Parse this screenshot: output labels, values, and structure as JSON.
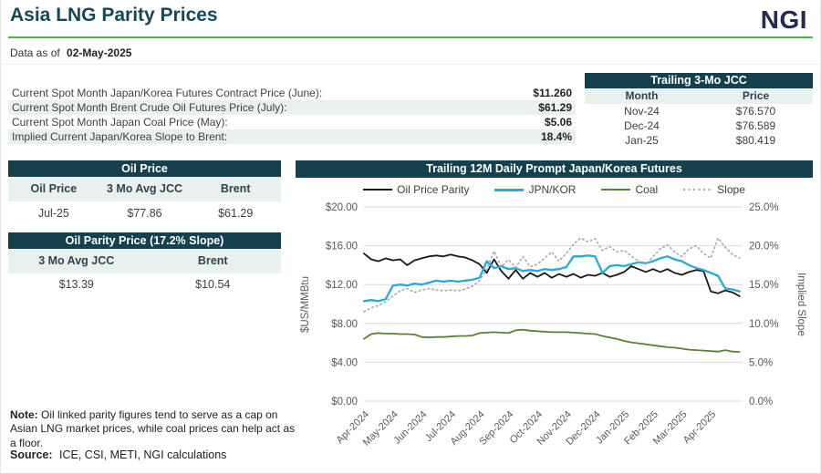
{
  "header": {
    "title": "Asia LNG Parity Prices",
    "logo": "NGI",
    "data_as_of_label": "Data as of",
    "data_as_of_date": "02-May-2025"
  },
  "spot_table": {
    "rows": [
      {
        "label": "Current Spot Month Japan/Korea Futures Contract Price (June):",
        "value": "$11.260"
      },
      {
        "label": "Current Spot Month Brent Crude Oil Futures Price (July):",
        "value": "$61.29"
      },
      {
        "label": "Current Spot Month Japan Coal Price (May):",
        "value": "$5.06"
      },
      {
        "label": "Implied Current Japan/Korea Slope to Brent:",
        "value": "18.4%"
      }
    ]
  },
  "jcc_table": {
    "title": "Trailing 3-Mo JCC",
    "columns": [
      "Month",
      "Price"
    ],
    "rows": [
      [
        "Nov-24",
        "$76.570"
      ],
      [
        "Dec-24",
        "$76.589"
      ],
      [
        "Jan-25",
        "$80.419"
      ]
    ]
  },
  "oil_price_table": {
    "title": "Oil Price",
    "columns": [
      "Oil Price",
      "3 Mo Avg JCC",
      "Brent"
    ],
    "rows": [
      [
        "Jul-25",
        "$77.86",
        "$61.29"
      ]
    ]
  },
  "oil_parity_table": {
    "title": "Oil Parity Price (17.2% Slope)",
    "columns": [
      "3 Mo Avg JCC",
      "Brent"
    ],
    "rows": [
      [
        "$13.39",
        "$10.54"
      ]
    ]
  },
  "note": {
    "label": "Note:",
    "text": " Oil linked parity figures tend to serve as a cap on Asian LNG market prices, while coal prices can help act as a floor."
  },
  "source": {
    "label": "Source:",
    "text": " ICE, CSI, METI, NGI calculations"
  },
  "colors": {
    "header_bar": "#15414e",
    "title_text": "#16485c",
    "logo_navy": "#252b4b",
    "accent_green_rule": "#4cb454",
    "row_stripe": "#e9f1ee",
    "grid_line": "#d9d9d9",
    "series_parity": "#1a1a1a",
    "series_jpnkor": "#29a8df",
    "series_coal": "#5c8038",
    "series_slope": "#a6a6a6"
  },
  "chart_data": {
    "type": "line",
    "title": "Trailing 12M Daily Prompt Japan/Korea Futures",
    "ylabel_left": "$US/MMBtu",
    "ylabel_right": "Implied Slope",
    "ylim_left": [
      0,
      20
    ],
    "ylim_right": [
      0,
      25
    ],
    "yticks_left": [
      "$0.00",
      "$4.00",
      "$8.00",
      "$12.00",
      "$16.00",
      "$20.00"
    ],
    "yticks_right": [
      "0.0%",
      "5.0%",
      "10.0%",
      "15.0%",
      "20.0%",
      "25.0%"
    ],
    "grid": "horizontal",
    "legend_position": "top",
    "x_unit": "months since Apr-2024",
    "xlim": [
      0,
      13.1
    ],
    "xtick_labels": [
      "Apr-2024",
      "May-2024",
      "Jun-2024",
      "Jul-2024",
      "Aug-2024",
      "Sep-2024",
      "Oct-2024",
      "Nov-2024",
      "Dec-2024",
      "Jan-2025",
      "Feb-2025",
      "Mar-2025",
      "Apr-2025"
    ],
    "xtick_positions": [
      0,
      1,
      2,
      3,
      4,
      5,
      6,
      7,
      8,
      9,
      10,
      11,
      12
    ],
    "series": [
      {
        "name": "Oil Price Parity",
        "axis": "left",
        "color": "#1a1a1a",
        "style": "solid",
        "x_start": 0,
        "x_step": 0.25,
        "values": [
          15.2,
          14.6,
          14.4,
          14.7,
          14.5,
          14.6,
          14.0,
          14.5,
          14.7,
          14.9,
          15.0,
          14.9,
          15.1,
          14.9,
          14.8,
          14.5,
          14.1,
          13.2,
          14.6,
          13.4,
          12.6,
          13.5,
          12.6,
          13.2,
          12.8,
          13.2,
          12.7,
          13.1,
          12.8,
          13.1,
          12.7,
          13.0,
          12.9,
          13.2,
          12.8,
          13.0,
          13.3,
          13.9,
          13.6,
          13.3,
          13.6,
          13.3,
          13.6,
          13.2,
          13.0,
          13.3,
          13.5,
          13.4,
          11.3,
          11.1,
          11.4,
          11.2,
          10.8
        ]
      },
      {
        "name": "JPN/KOR",
        "axis": "left",
        "color": "#29a8df",
        "style": "solid",
        "x_start": 0,
        "x_step": 0.25,
        "values": [
          10.3,
          10.4,
          10.3,
          10.5,
          11.9,
          12.0,
          11.9,
          12.1,
          12.0,
          12.2,
          12.4,
          12.3,
          12.4,
          12.3,
          12.4,
          12.5,
          12.7,
          14.4,
          13.7,
          13.9,
          13.6,
          13.7,
          13.4,
          13.5,
          13.4,
          13.6,
          13.5,
          13.6,
          13.8,
          14.9,
          14.9,
          15.0,
          14.9,
          13.2,
          13.9,
          14.0,
          13.9,
          14.1,
          14.3,
          14.2,
          14.4,
          14.7,
          14.9,
          14.6,
          14.4,
          14.0,
          13.7,
          13.5,
          13.2,
          12.9,
          11.6,
          11.5,
          11.3
        ]
      },
      {
        "name": "Coal",
        "axis": "left",
        "color": "#5c8038",
        "style": "solid",
        "x_start": 0,
        "x_step": 0.25,
        "values": [
          6.4,
          6.9,
          7.0,
          6.95,
          6.95,
          6.9,
          6.9,
          6.85,
          6.6,
          6.55,
          6.6,
          6.6,
          6.65,
          6.7,
          6.7,
          6.75,
          7.0,
          7.05,
          7.1,
          7.05,
          7.0,
          7.3,
          7.35,
          7.25,
          7.2,
          7.15,
          7.1,
          7.1,
          7.1,
          7.05,
          7.0,
          6.95,
          6.9,
          6.7,
          6.55,
          6.4,
          6.2,
          6.05,
          5.95,
          5.85,
          5.75,
          5.65,
          5.55,
          5.5,
          5.4,
          5.3,
          5.25,
          5.2,
          5.15,
          5.1,
          5.25,
          5.1,
          5.06
        ]
      },
      {
        "name": "Slope",
        "axis": "right",
        "color": "#a6a6a6",
        "style": "dotted",
        "x_start": 0,
        "x_step": 0.25,
        "values": [
          11.5,
          12.0,
          12.3,
          12.8,
          13.5,
          14.2,
          14.5,
          14.0,
          14.3,
          14.5,
          14.3,
          14.2,
          14.3,
          14.2,
          14.4,
          14.8,
          15.5,
          17.0,
          19.3,
          17.3,
          18.2,
          17.2,
          18.6,
          17.3,
          17.6,
          18.4,
          19.2,
          18.0,
          19.0,
          20.2,
          21.0,
          20.5,
          20.9,
          19.4,
          19.9,
          19.2,
          19.4,
          18.7,
          18.0,
          17.6,
          18.6,
          19.6,
          20.1,
          19.2,
          18.6,
          19.6,
          20.0,
          19.0,
          18.4,
          21.0,
          19.8,
          18.9,
          18.4
        ]
      }
    ]
  }
}
